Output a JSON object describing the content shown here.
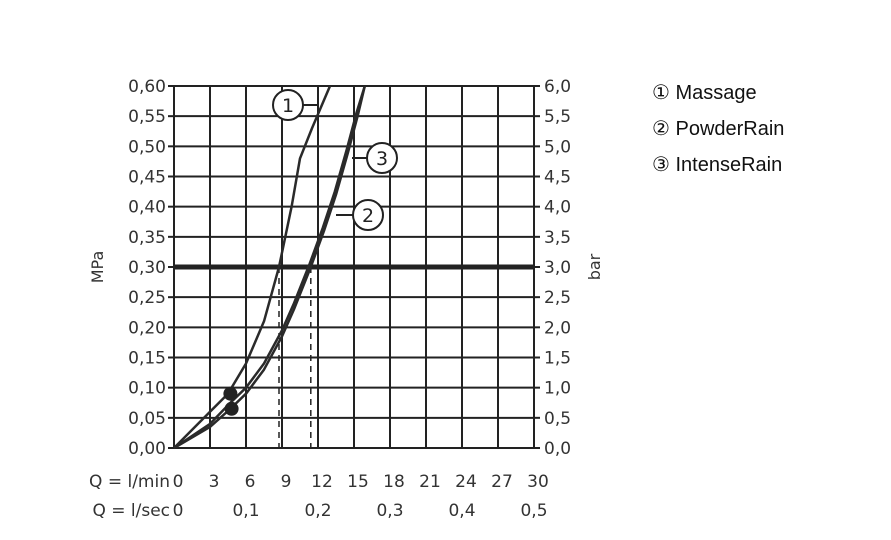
{
  "chart_data": {
    "type": "line",
    "xlabel_rows": [
      "Q = l/min",
      "Q = l/sec"
    ],
    "x_ticks_lmin": [
      "0",
      "3",
      "6",
      "9",
      "12",
      "15",
      "18",
      "21",
      "24",
      "27",
      "30"
    ],
    "x_ticks_lsec": [
      "0",
      "0,1",
      "0,2",
      "0,3",
      "0,4",
      "0,5"
    ],
    "ylabel_left": "MPa",
    "ylabel_right": "bar",
    "y_ticks_left": [
      "0,00",
      "0,05",
      "0,10",
      "0,15",
      "0,20",
      "0,25",
      "0,30",
      "0,35",
      "0,40",
      "0,45",
      "0,50",
      "0,55",
      "0,60"
    ],
    "y_ticks_right": [
      "0,0",
      "0,5",
      "1,0",
      "1,5",
      "2,0",
      "2,5",
      "3,0",
      "3,5",
      "4,0",
      "4,5",
      "5,0",
      "5,5",
      "6,0"
    ],
    "xlim": [
      0,
      30
    ],
    "ylim": [
      0,
      0.6
    ],
    "grid": true,
    "reference_line_mpa": 0.3,
    "legend_position": "right",
    "series": [
      {
        "name": "Massage",
        "marker": "1",
        "x": [
          0,
          3,
          4.5,
          6,
          7.5,
          8.75,
          9.8,
          10.5,
          11.5,
          13
        ],
        "y": [
          0,
          0.06,
          0.09,
          0.14,
          0.21,
          0.3,
          0.4,
          0.48,
          0.53,
          0.6
        ],
        "dashed_at_x": 8.75
      },
      {
        "name": "PowderRain",
        "marker": "2",
        "x": [
          0,
          3,
          4.7,
          6,
          7.5,
          9,
          10,
          11.4,
          12.5,
          13.5,
          14.5,
          15.3,
          15.9
        ],
        "y": [
          0,
          0.035,
          0.065,
          0.09,
          0.13,
          0.185,
          0.23,
          0.3,
          0.36,
          0.42,
          0.49,
          0.55,
          0.6
        ],
        "dashed_at_x": 11.4
      },
      {
        "name": "IntenseRain",
        "marker": "3",
        "x": [
          0,
          3,
          4.7,
          6,
          7.5,
          9,
          10,
          11.3,
          12.4,
          13.4,
          14.4,
          15.2,
          15.9
        ],
        "y": [
          0,
          0.04,
          0.075,
          0.1,
          0.14,
          0.195,
          0.24,
          0.305,
          0.365,
          0.425,
          0.495,
          0.555,
          0.6
        ]
      }
    ],
    "legend": [
      "① Massage",
      "② PowderRain",
      "③ IntenseRain"
    ]
  }
}
